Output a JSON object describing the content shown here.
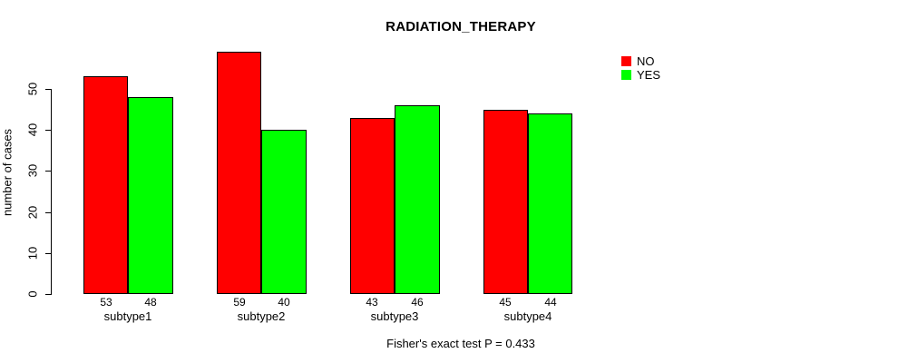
{
  "title": "RADIATION_THERAPY",
  "y_axis_label": "number of cases",
  "annotation": "Fisher's exact test P = 0.433",
  "legend": {
    "items": [
      {
        "label": "NO",
        "color": "#FF0000"
      },
      {
        "label": "YES",
        "color": "#00FF00"
      }
    ]
  },
  "chart_data": {
    "type": "bar",
    "grouped": true,
    "title": "RADIATION_THERAPY",
    "xlabel": "",
    "ylabel": "number of cases",
    "categories": [
      "subtype1",
      "subtype2",
      "subtype3",
      "subtype4"
    ],
    "series": [
      {
        "name": "NO",
        "color": "#FF0000",
        "values": [
          53,
          59,
          43,
          45
        ]
      },
      {
        "name": "YES",
        "color": "#00FF00",
        "values": [
          48,
          40,
          46,
          44
        ]
      }
    ],
    "bar_value_labels": [
      [
        53,
        59,
        43,
        45
      ],
      [
        48,
        40,
        46,
        44
      ]
    ],
    "yticks": [
      0,
      10,
      20,
      30,
      40,
      50
    ],
    "ylim": [
      0,
      59
    ],
    "grid": false,
    "legend_position": "top-right",
    "annotation": "Fisher's exact test P = 0.433"
  }
}
